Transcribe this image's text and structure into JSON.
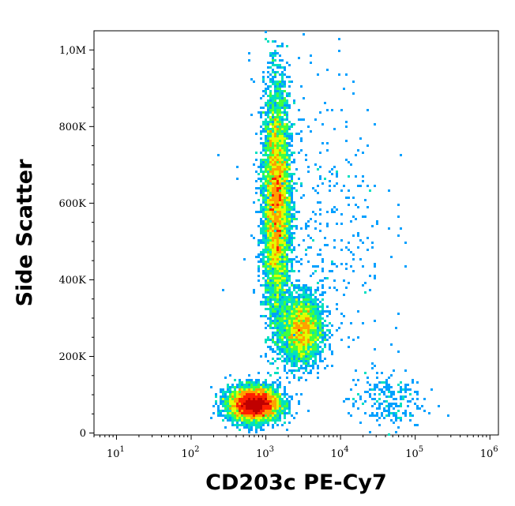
{
  "chart_data": {
    "type": "scatter",
    "title": "",
    "xlabel": "CD203c PE-Cy7",
    "ylabel": "Side Scatter",
    "x_scale": "log",
    "xlim": [
      5,
      1300000
    ],
    "ylim": [
      -5000,
      1050000
    ],
    "x_ticks": [
      {
        "value": 10,
        "base": "10",
        "exp": "1"
      },
      {
        "value": 100,
        "base": "10",
        "exp": "2"
      },
      {
        "value": 1000,
        "base": "10",
        "exp": "3"
      },
      {
        "value": 10000,
        "base": "10",
        "exp": "4"
      },
      {
        "value": 100000,
        "base": "10",
        "exp": "5"
      },
      {
        "value": 1000000,
        "base": "10",
        "exp": "6"
      }
    ],
    "y_ticks": [
      {
        "value": 0,
        "label": "0"
      },
      {
        "value": 200000,
        "label": "200K"
      },
      {
        "value": 400000,
        "label": "400K"
      },
      {
        "value": 600000,
        "label": "600K"
      },
      {
        "value": 800000,
        "label": "800K"
      },
      {
        "value": 1000000,
        "label": "1,0M"
      }
    ],
    "grid": false,
    "legend": "none",
    "color_scale": [
      "#0000ff",
      "#00a0ff",
      "#00e0c0",
      "#40ff40",
      "#e0ff00",
      "#ffa000",
      "#ff2000",
      "#c00000"
    ],
    "populations": [
      {
        "x_center": 700,
        "y_center": 75000,
        "x_spread_decades": 0.17,
        "y_spread": 22000,
        "events": 5200
      },
      {
        "x_center": 1400,
        "y_center": 600000,
        "x_spread_decades": 0.09,
        "y_spread": 150000,
        "events": 6500
      },
      {
        "x_center": 3000,
        "y_center": 270000,
        "x_spread_decades": 0.14,
        "y_spread": 45000,
        "events": 2600
      },
      {
        "x_center": 40000,
        "y_center": 85000,
        "x_spread_decades": 0.25,
        "y_spread": 40000,
        "events": 230
      },
      {
        "x_center": 5000,
        "y_center": 550000,
        "x_spread_decades": 0.45,
        "y_spread": 200000,
        "events": 420
      }
    ]
  }
}
